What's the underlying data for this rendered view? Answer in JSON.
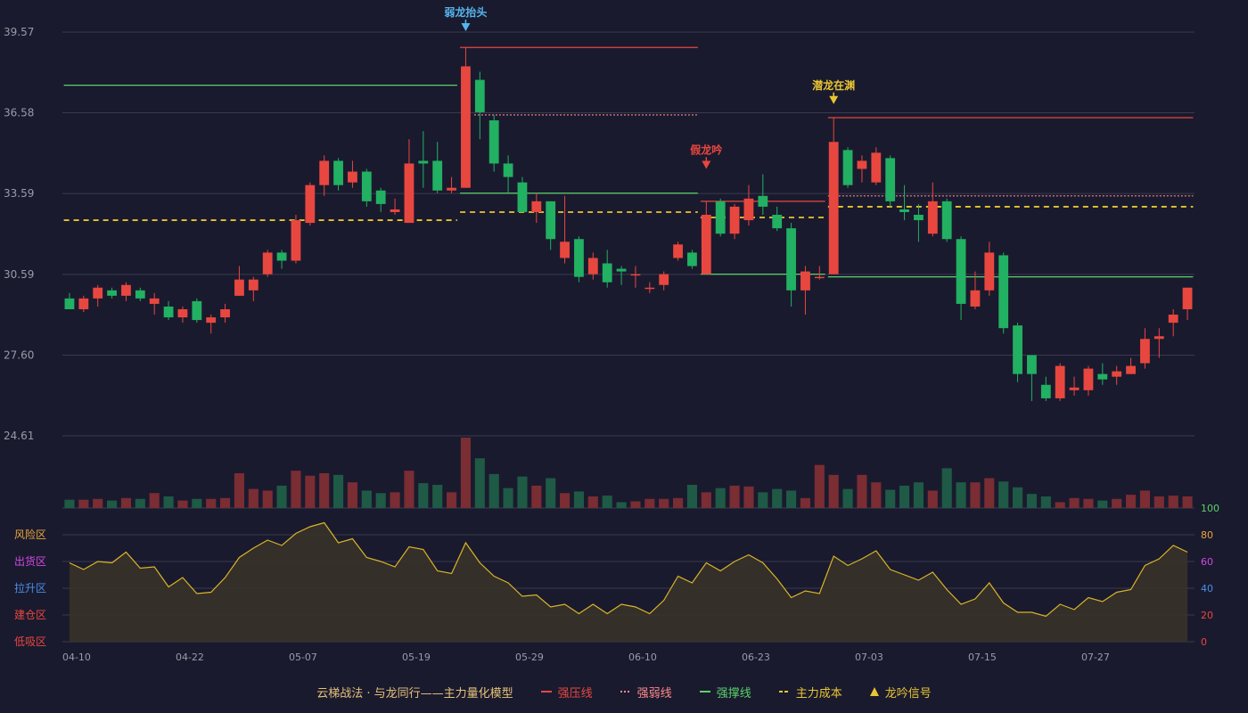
{
  "colors": {
    "background": "#1a1a2e",
    "up": "#e8473f",
    "down": "#22b062",
    "grid": "#3a3a4e",
    "axis_text": "#9a9aa8",
    "strong_pressure": "#e8473f",
    "weak_pressure": "#ff8a8a",
    "strong_support": "#5ad16a",
    "main_cost": "#e8c531",
    "oscillator_line": "#d9b428",
    "oscillator_fill": "#3a3427"
  },
  "legend": {
    "title": "云梯战法 · 与龙同行——主力量化模型",
    "items": [
      {
        "label": "强压线",
        "color": "#e8473f",
        "style": "solid"
      },
      {
        "label": "强弱线",
        "color": "#ff8a8a",
        "style": "dotted"
      },
      {
        "label": "强撑线",
        "color": "#5ad16a",
        "style": "solid"
      },
      {
        "label": "主力成本",
        "color": "#e8c531",
        "style": "dashed"
      },
      {
        "label": "龙吟信号",
        "color": "#e8c531",
        "style": "triangle"
      }
    ]
  },
  "chart_data": {
    "type": "candlestick",
    "price_axis": {
      "ticks": [
        "39.57",
        "36.58",
        "33.59",
        "30.59",
        "27.60",
        "24.61"
      ],
      "ylim": [
        24.61,
        39.57
      ]
    },
    "x_axis": {
      "tick_labels": [
        "04-10",
        "04-22",
        "05-07",
        "05-19",
        "05-29",
        "06-10",
        "06-23",
        "07-03",
        "07-15",
        "07-27"
      ],
      "tick_index": [
        0,
        8,
        16,
        24,
        32,
        40,
        48,
        56,
        64,
        72
      ]
    },
    "candles": [
      [
        29.7,
        29.3,
        29.9,
        29.3
      ],
      [
        29.3,
        29.7,
        29.8,
        29.2
      ],
      [
        29.7,
        30.1,
        30.2,
        29.4
      ],
      [
        30.0,
        29.8,
        30.1,
        29.7
      ],
      [
        29.8,
        30.2,
        30.3,
        29.6
      ],
      [
        30.0,
        29.7,
        30.1,
        29.6
      ],
      [
        29.5,
        29.7,
        29.9,
        29.1
      ],
      [
        29.4,
        29.0,
        29.6,
        28.9
      ],
      [
        29.0,
        29.3,
        29.4,
        28.8
      ],
      [
        29.6,
        28.9,
        29.7,
        28.8
      ],
      [
        28.8,
        29.0,
        29.1,
        28.4
      ],
      [
        29.0,
        29.3,
        29.5,
        28.8
      ],
      [
        29.8,
        30.4,
        30.9,
        29.8
      ],
      [
        30.0,
        30.4,
        30.5,
        29.6
      ],
      [
        30.6,
        31.4,
        31.5,
        30.5
      ],
      [
        31.4,
        31.1,
        31.5,
        30.8
      ],
      [
        31.1,
        32.6,
        32.8,
        31.0
      ],
      [
        32.5,
        33.9,
        34.0,
        32.4
      ],
      [
        33.9,
        34.8,
        35.0,
        33.5
      ],
      [
        34.8,
        33.9,
        34.9,
        33.7
      ],
      [
        34.0,
        34.4,
        34.8,
        33.8
      ],
      [
        34.4,
        33.3,
        34.5,
        33.1
      ],
      [
        33.7,
        33.2,
        33.8,
        32.9
      ],
      [
        32.9,
        33.0,
        33.4,
        32.8
      ],
      [
        32.5,
        34.7,
        35.6,
        32.5
      ],
      [
        34.8,
        34.7,
        35.9,
        33.8
      ],
      [
        34.8,
        33.7,
        35.5,
        33.6
      ],
      [
        33.7,
        33.8,
        34.2,
        33.6
      ],
      [
        33.8,
        38.3,
        38.9,
        33.8
      ],
      [
        37.8,
        36.6,
        38.1,
        35.6
      ],
      [
        36.3,
        34.7,
        36.5,
        34.4
      ],
      [
        34.7,
        34.2,
        35.0,
        33.6
      ],
      [
        34.0,
        32.9,
        34.2,
        32.9
      ],
      [
        32.9,
        33.3,
        33.6,
        32.5
      ],
      [
        33.3,
        31.9,
        33.3,
        31.5
      ],
      [
        31.2,
        31.8,
        33.5,
        31.0
      ],
      [
        31.9,
        30.5,
        32.0,
        30.3
      ],
      [
        30.6,
        31.2,
        31.4,
        30.4
      ],
      [
        31.0,
        30.3,
        31.5,
        30.1
      ],
      [
        30.8,
        30.7,
        30.9,
        30.2
      ],
      [
        30.6,
        30.6,
        30.9,
        30.1
      ],
      [
        30.1,
        30.1,
        30.3,
        29.9
      ],
      [
        30.2,
        30.6,
        30.7,
        30.0
      ],
      [
        31.2,
        31.7,
        31.8,
        31.1
      ],
      [
        31.4,
        30.9,
        31.5,
        30.8
      ],
      [
        30.6,
        32.8,
        32.9,
        30.6
      ],
      [
        33.3,
        32.1,
        33.4,
        32.0
      ],
      [
        32.1,
        33.1,
        33.2,
        31.9
      ],
      [
        32.6,
        33.4,
        33.9,
        32.4
      ],
      [
        33.5,
        33.1,
        34.3,
        32.8
      ],
      [
        32.8,
        32.3,
        33.1,
        32.2
      ],
      [
        32.3,
        30.0,
        32.5,
        29.4
      ],
      [
        30.0,
        30.7,
        30.9,
        29.1
      ],
      [
        30.5,
        30.5,
        30.9,
        30.4
      ],
      [
        30.6,
        35.5,
        35.9,
        30.6
      ],
      [
        35.2,
        33.9,
        35.3,
        33.8
      ],
      [
        34.5,
        34.8,
        35.0,
        34.0
      ],
      [
        34.0,
        35.1,
        35.3,
        33.9
      ],
      [
        34.9,
        33.3,
        35.0,
        33.1
      ],
      [
        33.0,
        32.9,
        33.9,
        32.6
      ],
      [
        32.8,
        32.6,
        33.2,
        31.8
      ],
      [
        32.1,
        33.3,
        34.0,
        32.0
      ],
      [
        33.3,
        31.9,
        33.4,
        31.8
      ],
      [
        31.9,
        29.5,
        32.0,
        28.9
      ],
      [
        29.4,
        30.0,
        30.7,
        29.3
      ],
      [
        30.0,
        31.4,
        31.8,
        29.8
      ],
      [
        31.3,
        28.6,
        31.4,
        28.4
      ],
      [
        28.7,
        26.9,
        28.8,
        26.6
      ],
      [
        27.6,
        26.9,
        27.6,
        25.9
      ],
      [
        26.5,
        26.0,
        26.8,
        25.9
      ],
      [
        26.0,
        27.2,
        27.3,
        25.9
      ],
      [
        26.3,
        26.4,
        26.8,
        26.1
      ],
      [
        26.3,
        27.1,
        27.2,
        26.1
      ],
      [
        26.9,
        26.7,
        27.3,
        26.5
      ],
      [
        26.8,
        27.0,
        27.2,
        26.5
      ],
      [
        26.9,
        27.2,
        27.5,
        26.9
      ],
      [
        27.3,
        28.2,
        28.6,
        27.1
      ],
      [
        28.2,
        28.3,
        28.6,
        27.5
      ],
      [
        28.8,
        29.1,
        29.3,
        28.3
      ],
      [
        29.3,
        30.1,
        30.1,
        28.9
      ]
    ],
    "volume": [
      1.0,
      1.0,
      1.1,
      0.9,
      1.2,
      1.1,
      1.8,
      1.4,
      0.9,
      1.1,
      1.1,
      1.2,
      4.2,
      2.3,
      2.1,
      2.7,
      4.5,
      3.9,
      4.2,
      4.0,
      3.1,
      2.1,
      1.8,
      1.9,
      4.5,
      3.0,
      2.8,
      1.9,
      8.5,
      6.0,
      4.1,
      2.4,
      3.8,
      2.7,
      3.6,
      1.8,
      2.0,
      1.4,
      1.5,
      0.7,
      0.8,
      1.1,
      1.1,
      1.2,
      2.8,
      1.9,
      2.4,
      2.7,
      2.6,
      1.9,
      2.3,
      2.1,
      1.2,
      5.2,
      4.0,
      2.3,
      4.0,
      3.1,
      2.2,
      2.7,
      3.1,
      2.1,
      4.8,
      3.1,
      3.1,
      3.6,
      3.2,
      2.5,
      1.7,
      1.4,
      0.7,
      1.2,
      1.1,
      0.9,
      1.1,
      1.6,
      2.1,
      1.4,
      1.5,
      1.4
    ],
    "lines": {
      "strong_pressure": [
        {
          "from": 28,
          "to": 44,
          "value": 39.0
        },
        {
          "from": 45,
          "to": 53,
          "value": 33.3
        },
        {
          "from": 54,
          "to": 79,
          "value": 36.4
        }
      ],
      "weak_pressure": [
        {
          "from": 29,
          "to": 44,
          "value": 36.5
        },
        {
          "from": 54,
          "to": 79,
          "value": 33.5
        }
      ],
      "strong_support": [
        {
          "from": 0,
          "to": 27,
          "value": 37.6
        },
        {
          "from": 28,
          "to": 44,
          "value": 33.6
        },
        {
          "from": 45,
          "to": 53,
          "value": 30.6
        },
        {
          "from": 54,
          "to": 79,
          "value": 30.5
        }
      ],
      "main_cost": [
        {
          "from": 0,
          "to": 27,
          "value": 32.6
        },
        {
          "from": 28,
          "to": 44,
          "value": 32.9
        },
        {
          "from": 45,
          "to": 53,
          "value": 32.7
        },
        {
          "from": 54,
          "to": 79,
          "value": 33.1
        }
      ]
    },
    "signals": [
      {
        "index": 28,
        "label": "弱龙抬头",
        "color": "#55b6ee",
        "price": 39.9
      },
      {
        "index": 45,
        "label": "假龙吟",
        "color": "#e8473f",
        "price": 34.8
      },
      {
        "index": 54,
        "label": "潜龙在渊",
        "color": "#e8c531",
        "price": 37.2
      }
    ],
    "oscillator": {
      "ylim": [
        0,
        100
      ],
      "ticks": [
        "100",
        "80",
        "60",
        "40",
        "20",
        "0"
      ],
      "zones": [
        {
          "label": "风险区",
          "value": 80,
          "color": "#e8a53c"
        },
        {
          "label": "出货区",
          "value": 60,
          "color": "#d04ae0"
        },
        {
          "label": "拉升区",
          "value": 40,
          "color": "#4a8ee8"
        },
        {
          "label": "建仓区",
          "value": 20,
          "color": "#e8473f"
        },
        {
          "label": "低吸区",
          "value": 0,
          "color": "#e8473f"
        }
      ],
      "values": [
        59,
        54,
        60,
        59,
        67,
        55,
        56,
        41,
        48,
        36,
        37,
        48,
        63,
        70,
        76,
        72,
        81,
        86,
        89,
        74,
        77,
        63,
        60,
        56,
        71,
        69,
        53,
        51,
        74,
        59,
        49,
        44,
        34,
        35,
        26,
        28,
        21,
        28,
        21,
        28,
        26,
        21,
        31,
        49,
        44,
        59,
        53,
        60,
        65,
        59,
        47,
        33,
        38,
        36,
        64,
        57,
        62,
        68,
        54,
        50,
        46,
        52,
        39,
        28,
        32,
        44,
        29,
        22,
        22,
        19,
        28,
        24,
        33,
        30,
        37,
        39,
        57,
        62,
        72,
        67
      ]
    }
  }
}
